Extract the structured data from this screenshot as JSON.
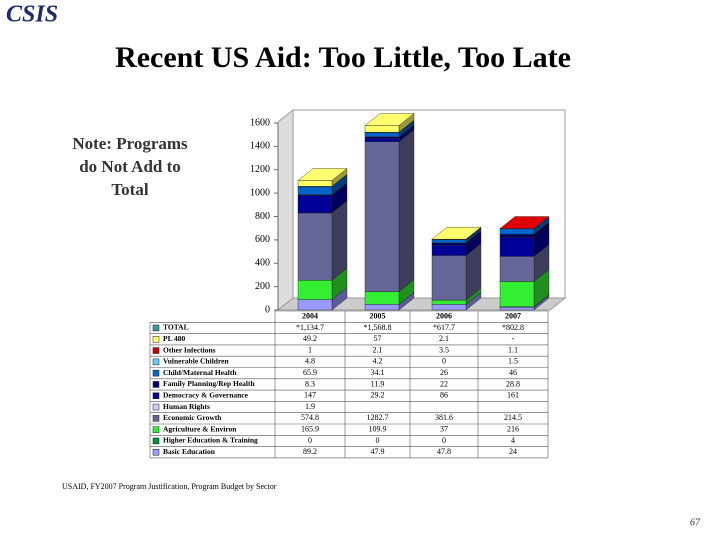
{
  "logo": "CSIS",
  "title": "Recent US Aid: Too Little, Too Late",
  "note": "Note: Programs do Not Add to Total",
  "source": "USAID, FY2007 Program Justification, Program Budget by Sector",
  "page_number": "67",
  "chart_data": {
    "type": "bar",
    "stacked": true,
    "categories": [
      "2004",
      "2005",
      "2006",
      "2007"
    ],
    "ylim": [
      0,
      1600
    ],
    "yticks": [
      0,
      200,
      400,
      600,
      800,
      1000,
      1200,
      1400,
      1600
    ],
    "total": {
      "name": "TOTAL",
      "color": "#339999",
      "values": [
        1134.7,
        1568.8,
        617.7,
        802.8
      ],
      "value_labels": [
        "*1,134.7",
        "*1,568.8",
        "*617.7",
        "*802.8"
      ]
    },
    "series": [
      {
        "name": "PL 480",
        "color": "#ffff66",
        "values": [
          49.2,
          57,
          2.1,
          null
        ],
        "value_labels": [
          "49.2",
          "57",
          "2.1",
          "-"
        ]
      },
      {
        "name": "Other Infections",
        "color": "#cc0000",
        "values": [
          1,
          2.1,
          3.5,
          1.1
        ]
      },
      {
        "name": "Vulnerable Children",
        "color": "#66ccff",
        "values": [
          4.8,
          4.2,
          0,
          1.5
        ]
      },
      {
        "name": "Child/Maternal Health",
        "color": "#0066cc",
        "values": [
          65.9,
          34.1,
          26,
          46
        ]
      },
      {
        "name": "Family Planning/Rep Health",
        "color": "#000066",
        "values": [
          8.3,
          11.9,
          22,
          28.8
        ]
      },
      {
        "name": "Democracy & Governance",
        "color": "#000099",
        "values": [
          147,
          29.2,
          86,
          161
        ]
      },
      {
        "name": "Human Rights",
        "color": "#ccccff",
        "values": [
          1.9,
          null,
          null,
          null
        ]
      },
      {
        "name": "Economic Growth",
        "color": "#666699",
        "values": [
          574.8,
          1282.7,
          381.6,
          214.5
        ]
      },
      {
        "name": "Agriculture & Environ",
        "color": "#33ee33",
        "values": [
          165.9,
          109.9,
          37,
          216
        ]
      },
      {
        "name": "Higher Education & Training",
        "color": "#009933",
        "values": [
          0,
          0,
          0,
          4
        ]
      },
      {
        "name": "Basic Education",
        "color": "#9999ff",
        "values": [
          89.2,
          47.9,
          47.8,
          24
        ]
      }
    ]
  }
}
